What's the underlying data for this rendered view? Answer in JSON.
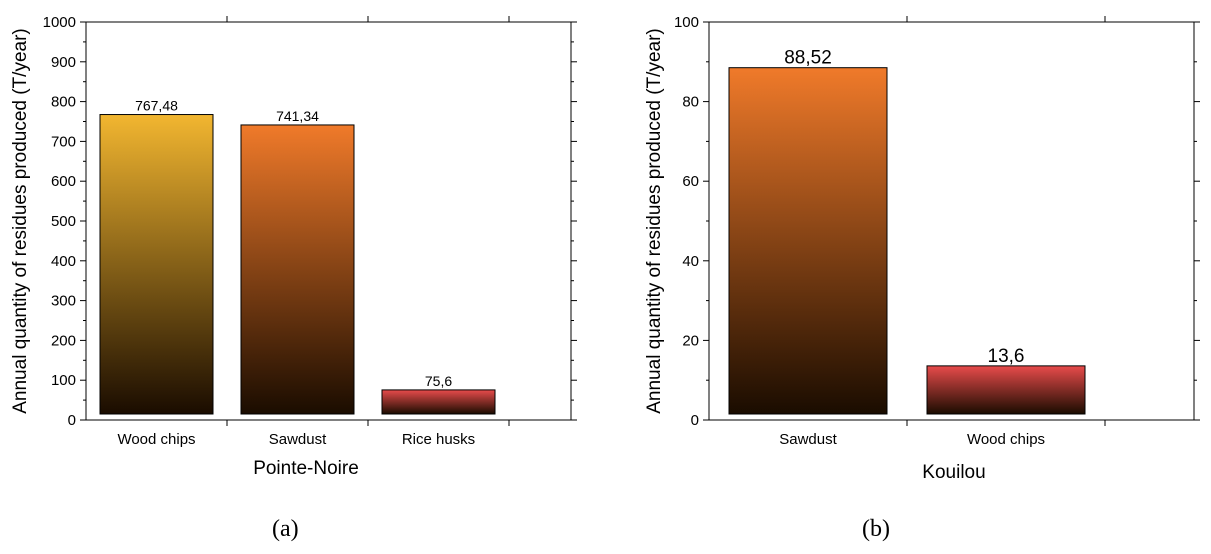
{
  "chart_data": [
    {
      "type": "bar",
      "categories": [
        "Wood chips",
        "Sawdust",
        "Rice husks"
      ],
      "values": [
        767.48,
        741.34,
        75.6
      ],
      "value_labels": [
        "767,48",
        "741,34",
        "75,6"
      ],
      "ylabel": "Annual quantity of residues produced (T/year)",
      "xlabel": "Pointe-Noire",
      "ylim": [
        0,
        1000
      ],
      "yticks": [
        0,
        100,
        200,
        300,
        400,
        500,
        600,
        700,
        800,
        900,
        1000
      ],
      "bar_colors": [
        "#f2b630",
        "#f07a2a",
        "#e84b4b"
      ],
      "grid": false,
      "caption": "(a)"
    },
    {
      "type": "bar",
      "categories": [
        "Sawdust",
        "Wood chips"
      ],
      "values": [
        88.52,
        13.6
      ],
      "value_labels": [
        "88,52",
        "13,6"
      ],
      "ylabel": "Annual quantity of residues produced (T/year)",
      "xlabel": "Kouilou",
      "ylim": [
        0,
        100
      ],
      "yticks": [
        0,
        20,
        40,
        60,
        80,
        100
      ],
      "bar_colors": [
        "#f07a2a",
        "#e84b4b"
      ],
      "grid": false,
      "caption": "(b)"
    }
  ]
}
